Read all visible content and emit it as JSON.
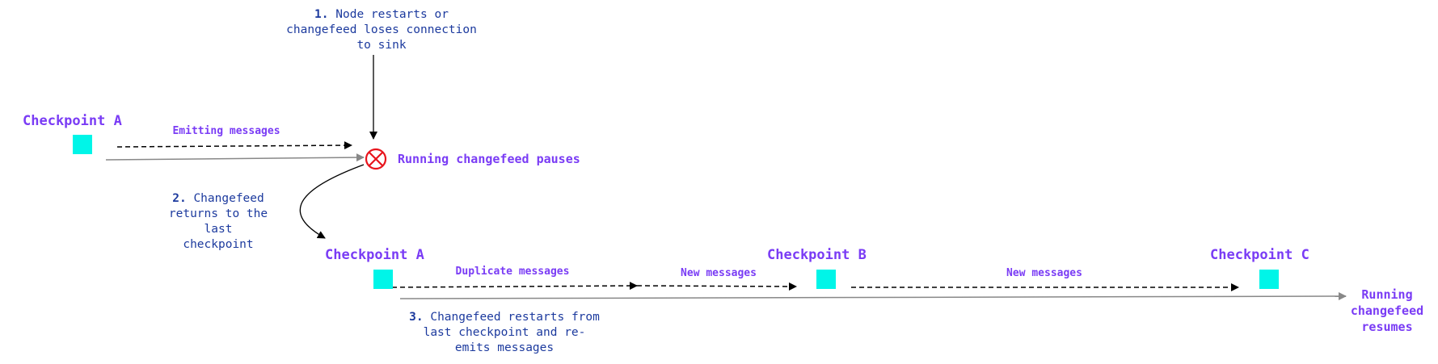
{
  "colors": {
    "checkpoint_square": "#00f5e8",
    "label_purple": "#7a3cf5",
    "note_blue": "#1c3a9e",
    "pause_icon": "#e8141c"
  },
  "step1": {
    "number": "1.",
    "lines": [
      "Node restarts or",
      "changefeed loses connection",
      "to sink"
    ]
  },
  "step2": {
    "number": "2.",
    "lines": [
      "Changefeed",
      "returns to the",
      "last",
      "checkpoint"
    ]
  },
  "step3": {
    "number": "3.",
    "lines": [
      "Changefeed restarts from",
      "last checkpoint and re-",
      "emits messages"
    ]
  },
  "top_row": {
    "checkpoint": "Checkpoint A",
    "emitting_label": "Emitting messages",
    "pause_label": "Running changefeed pauses",
    "pause_icon": "circle-x-icon"
  },
  "bottom_row": {
    "checkpoints": [
      "Checkpoint A",
      "Checkpoint B",
      "Checkpoint C"
    ],
    "segments": [
      "Duplicate messages",
      "New messages",
      "New messages"
    ],
    "resume_label": [
      "Running",
      "changefeed",
      "resumes"
    ]
  }
}
